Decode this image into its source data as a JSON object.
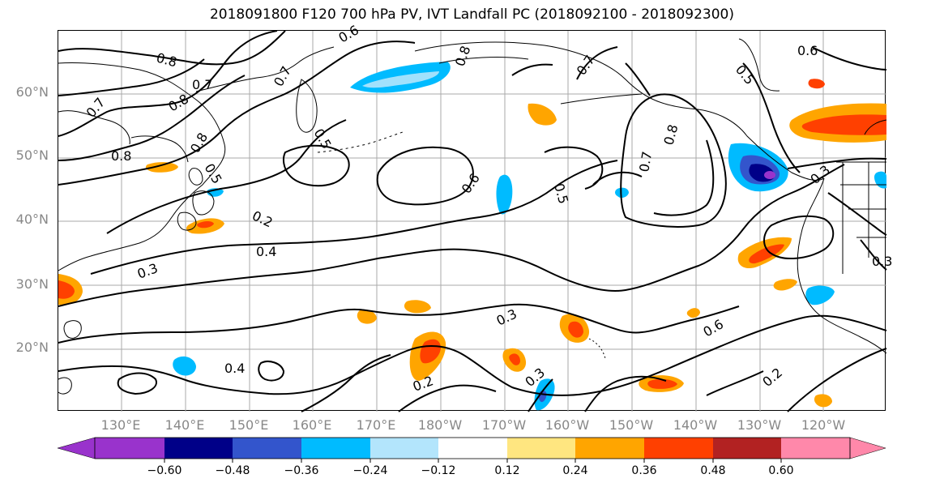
{
  "title": "2018091800 F120 700 hPa PV, IVT Landfall PC (2018092100 - 2018092300)",
  "lat_labels": [
    "60°N",
    "50°N",
    "40°N",
    "30°N",
    "20°N"
  ],
  "lon_labels": [
    "130°E",
    "140°E",
    "150°E",
    "160°E",
    "170°E",
    "180°W",
    "170°W",
    "160°W",
    "150°W",
    "140°W",
    "130°W",
    "120°W"
  ],
  "contour_labels": [
    "0.8",
    "0.7",
    "0.8",
    "0.7",
    "0.8",
    "0.6",
    "0.5",
    "0.8",
    "0.5",
    "0.7",
    "0.6",
    "0.5",
    "0.7",
    "0.8",
    "0.8",
    "0.7",
    "0.6",
    "0.5",
    "0.4",
    "0.3",
    "0.3",
    "0.6",
    "0.2",
    "0.3",
    "0.4",
    "0.2",
    "0.3",
    "0.2",
    "0.3"
  ],
  "colorbar": {
    "tick_labels": [
      "−0.60",
      "−0.48",
      "−0.36",
      "−0.24",
      "−0.12",
      "0.12",
      "0.24",
      "0.36",
      "0.48",
      "0.60"
    ],
    "colors": [
      "#9933cc",
      "#000088",
      "#3355cc",
      "#00bbff",
      "#b3e5fc",
      "#ffffff",
      "#ffe680",
      "#ffa500",
      "#ff4000",
      "#b22222",
      "#ff88aa"
    ]
  },
  "colors": {
    "contour": "#000000",
    "grid": "#aaaaaa",
    "coast": "#000000"
  }
}
